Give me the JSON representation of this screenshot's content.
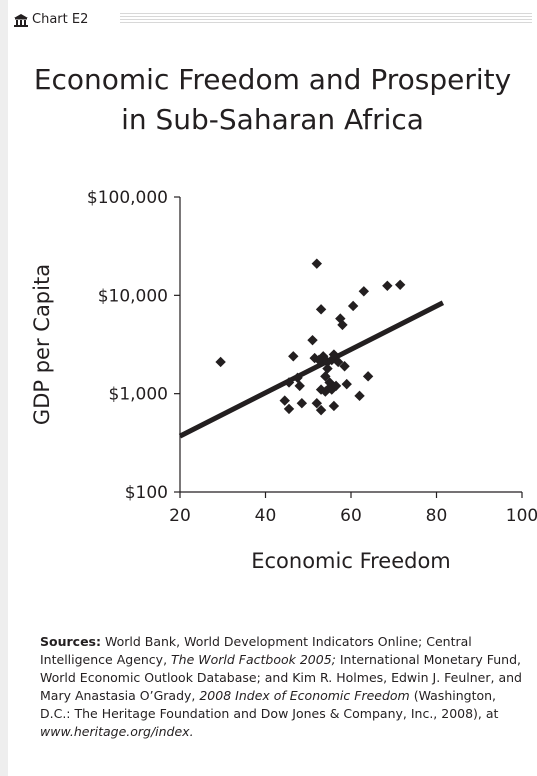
{
  "header": {
    "label": "Chart E2",
    "icon": "building-icon"
  },
  "chart_data": {
    "type": "scatter",
    "title_lines": [
      "Economic Freedom and Prosperity",
      "in Sub-Saharan Africa"
    ],
    "xlabel": "Economic Freedom",
    "ylabel": "GDP per Capita",
    "xlim": [
      20,
      100
    ],
    "ylim": [
      100,
      100000
    ],
    "y_scale": "log",
    "x_ticks": [
      "20",
      "40",
      "60",
      "80",
      "100"
    ],
    "x_tick_values": [
      20,
      40,
      60,
      80,
      100
    ],
    "y_ticks": [
      "$100",
      "$1,000",
      "$10,000",
      "$100,000"
    ],
    "y_tick_values": [
      100,
      1000,
      10000,
      100000
    ],
    "points": [
      {
        "x": 29.5,
        "y": 2100
      },
      {
        "x": 44.5,
        "y": 850
      },
      {
        "x": 45.5,
        "y": 1300
      },
      {
        "x": 45.5,
        "y": 700
      },
      {
        "x": 46.5,
        "y": 2400
      },
      {
        "x": 47.5,
        "y": 1450
      },
      {
        "x": 48.0,
        "y": 1200
      },
      {
        "x": 48.5,
        "y": 800
      },
      {
        "x": 51.0,
        "y": 3500
      },
      {
        "x": 51.5,
        "y": 2300
      },
      {
        "x": 52.0,
        "y": 21000
      },
      {
        "x": 52.0,
        "y": 800
      },
      {
        "x": 52.5,
        "y": 2200
      },
      {
        "x": 53.0,
        "y": 7200
      },
      {
        "x": 53.0,
        "y": 1100
      },
      {
        "x": 53.0,
        "y": 680
      },
      {
        "x": 53.5,
        "y": 2400
      },
      {
        "x": 54.0,
        "y": 1500
      },
      {
        "x": 54.0,
        "y": 1050
      },
      {
        "x": 54.5,
        "y": 2100
      },
      {
        "x": 54.5,
        "y": 1800
      },
      {
        "x": 55.0,
        "y": 1300
      },
      {
        "x": 55.0,
        "y": 1150
      },
      {
        "x": 55.5,
        "y": 2200
      },
      {
        "x": 55.5,
        "y": 1100
      },
      {
        "x": 56.0,
        "y": 2500
      },
      {
        "x": 56.0,
        "y": 750
      },
      {
        "x": 56.5,
        "y": 1200
      },
      {
        "x": 57.0,
        "y": 2100
      },
      {
        "x": 57.5,
        "y": 5800
      },
      {
        "x": 58.0,
        "y": 5000
      },
      {
        "x": 58.5,
        "y": 1900
      },
      {
        "x": 59.0,
        "y": 1250
      },
      {
        "x": 60.5,
        "y": 7800
      },
      {
        "x": 62.0,
        "y": 950
      },
      {
        "x": 63.0,
        "y": 11000
      },
      {
        "x": 64.0,
        "y": 1500
      },
      {
        "x": 68.5,
        "y": 12500
      },
      {
        "x": 71.5,
        "y": 12800
      }
    ],
    "trendline": {
      "from": {
        "x": 20,
        "y": 370
      },
      "to": {
        "x": 81.5,
        "y": 8400
      }
    },
    "grid": false
  },
  "sources": {
    "label": "Sources:",
    "text_1": " World Bank, World Development Indicators Online; Central Intelligence Agency, ",
    "italic_1": "The World Factbook 2005;",
    "text_2": " International Monetary Fund, World Economic Outlook Database; and Kim R. Holmes, Edwin J. Feulner, and Mary Anastasia O’Grady, ",
    "italic_2": "2008 Index of Economic Freedom",
    "text_3": " (Washington, D.C.: The Heritage Foundation and Dow Jones & Company, Inc., 2008), at ",
    "italic_3": "www.heritage.org/index.",
    "text_4": ""
  }
}
